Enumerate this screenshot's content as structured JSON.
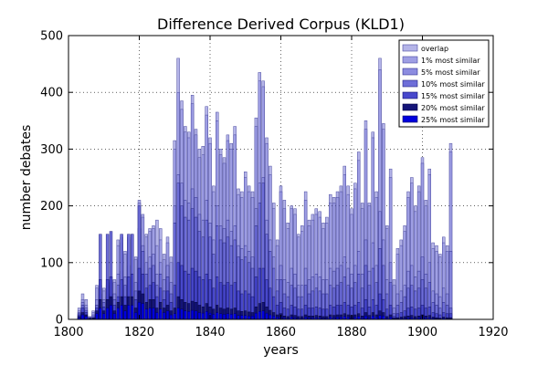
{
  "chart_data": {
    "type": "bar",
    "title": "Difference Derived Corpus (KLD1)",
    "xlabel": "years",
    "ylabel": "number debates",
    "xlim": [
      1800,
      1920
    ],
    "ylim": [
      0,
      500
    ],
    "xticks": [
      "1800",
      "1820",
      "1840",
      "1860",
      "1880",
      "1900",
      "1920"
    ],
    "yticks": [
      "0",
      "100",
      "200",
      "300",
      "400",
      "500"
    ],
    "grid": true,
    "legend_position": "top-right",
    "x": [
      1803,
      1804,
      1805,
      1806,
      1807,
      1808,
      1809,
      1810,
      1811,
      1812,
      1813,
      1814,
      1815,
      1816,
      1817,
      1818,
      1819,
      1820,
      1821,
      1822,
      1823,
      1824,
      1825,
      1826,
      1827,
      1828,
      1829,
      1830,
      1831,
      1832,
      1833,
      1834,
      1835,
      1836,
      1837,
      1838,
      1839,
      1840,
      1841,
      1842,
      1843,
      1844,
      1845,
      1846,
      1847,
      1848,
      1849,
      1850,
      1851,
      1852,
      1853,
      1854,
      1855,
      1856,
      1857,
      1858,
      1859,
      1860,
      1861,
      1862,
      1863,
      1864,
      1865,
      1866,
      1867,
      1868,
      1869,
      1870,
      1871,
      1872,
      1873,
      1874,
      1875,
      1876,
      1877,
      1878,
      1879,
      1880,
      1881,
      1882,
      1883,
      1884,
      1885,
      1886,
      1887,
      1888,
      1889,
      1890,
      1891,
      1892,
      1893,
      1894,
      1895,
      1896,
      1897,
      1898,
      1899,
      1900,
      1901,
      1902,
      1903,
      1904,
      1905,
      1906,
      1907,
      1908
    ],
    "series": [
      {
        "name": "overlap",
        "color": "#b4b4e8",
        "edge": "#4a4aa0",
        "values": [
          20,
          45,
          35,
          5,
          15,
          60,
          60,
          55,
          60,
          70,
          70,
          140,
          145,
          120,
          145,
          150,
          110,
          210,
          185,
          150,
          160,
          165,
          175,
          160,
          115,
          145,
          110,
          315,
          460,
          385,
          340,
          330,
          395,
          335,
          300,
          305,
          375,
          320,
          235,
          365,
          300,
          285,
          325,
          310,
          340,
          230,
          225,
          260,
          235,
          225,
          355,
          435,
          420,
          320,
          270,
          205,
          140,
          235,
          210,
          170,
          200,
          195,
          150,
          165,
          225,
          175,
          185,
          195,
          190,
          170,
          180,
          220,
          215,
          225,
          235,
          270,
          235,
          195,
          240,
          295,
          205,
          350,
          205,
          330,
          225,
          460,
          345,
          165,
          265,
          70,
          125,
          140,
          165,
          225,
          250,
          200,
          235,
          285,
          210,
          265,
          135,
          130,
          115,
          145,
          130,
          310
        ]
      },
      {
        "name": "1% most similar",
        "color": "#9e9ee4",
        "edge": "#4a4aa0",
        "values": [
          15,
          35,
          25,
          4,
          12,
          55,
          55,
          50,
          55,
          65,
          65,
          130,
          135,
          115,
          140,
          145,
          105,
          205,
          180,
          145,
          155,
          160,
          130,
          140,
          105,
          135,
          100,
          300,
          400,
          370,
          330,
          320,
          380,
          325,
          285,
          290,
          360,
          310,
          225,
          350,
          290,
          275,
          315,
          300,
          325,
          220,
          215,
          250,
          225,
          215,
          340,
          420,
          410,
          310,
          255,
          195,
          130,
          225,
          195,
          160,
          195,
          185,
          145,
          155,
          210,
          165,
          175,
          185,
          180,
          160,
          170,
          205,
          205,
          215,
          225,
          255,
          220,
          185,
          230,
          280,
          195,
          335,
          200,
          320,
          215,
          440,
          335,
          160,
          250,
          60,
          115,
          130,
          155,
          215,
          240,
          190,
          225,
          275,
          200,
          255,
          125,
          120,
          110,
          135,
          120,
          295
        ]
      },
      {
        "name": "5% most similar",
        "color": "#8c8ce0",
        "edge": "#333390",
        "values": [
          12,
          30,
          20,
          3,
          8,
          35,
          45,
          35,
          40,
          45,
          45,
          80,
          85,
          75,
          95,
          100,
          65,
          160,
          130,
          100,
          110,
          115,
          80,
          100,
          70,
          95,
          65,
          200,
          255,
          240,
          210,
          205,
          230,
          215,
          185,
          175,
          210,
          170,
          140,
          200,
          165,
          160,
          175,
          155,
          165,
          130,
          125,
          130,
          120,
          110,
          195,
          240,
          250,
          175,
          140,
          110,
          70,
          95,
          70,
          65,
          90,
          80,
          60,
          60,
          90,
          70,
          75,
          80,
          75,
          70,
          70,
          90,
          85,
          90,
          95,
          110,
          90,
          80,
          95,
          120,
          80,
          140,
          85,
          135,
          95,
          190,
          140,
          70,
          100,
          20,
          45,
          50,
          60,
          85,
          95,
          75,
          85,
          110,
          80,
          100,
          50,
          45,
          40,
          55,
          45,
          120
        ]
      },
      {
        "name": "10% most similar",
        "color": "#6e6ed8",
        "edge": "#222280",
        "values": [
          10,
          25,
          16,
          2,
          5,
          25,
          150,
          30,
          150,
          155,
          35,
          60,
          150,
          60,
          150,
          150,
          50,
          200,
          120,
          80,
          90,
          95,
          60,
          80,
          50,
          75,
          45,
          170,
          240,
          200,
          180,
          175,
          195,
          180,
          155,
          145,
          175,
          145,
          115,
          165,
          140,
          135,
          145,
          130,
          140,
          110,
          105,
          110,
          100,
          90,
          165,
          205,
          240,
          150,
          120,
          90,
          50,
          70,
          45,
          40,
          60,
          55,
          40,
          40,
          60,
          45,
          50,
          55,
          50,
          45,
          45,
          60,
          55,
          60,
          65,
          75,
          60,
          55,
          65,
          80,
          55,
          95,
          60,
          90,
          65,
          125,
          95,
          45,
          65,
          10,
          25,
          30,
          40,
          55,
          60,
          50,
          55,
          70,
          55,
          65,
          30,
          25,
          20,
          30,
          25,
          20
        ]
      },
      {
        "name": "15% most similar",
        "color": "#4848cc",
        "edge": "#111170",
        "values": [
          8,
          20,
          12,
          2,
          3,
          20,
          70,
          22,
          70,
          75,
          25,
          40,
          70,
          40,
          75,
          80,
          35,
          90,
          80,
          55,
          60,
          65,
          40,
          55,
          35,
          50,
          30,
          60,
          100,
          95,
          85,
          80,
          90,
          85,
          75,
          70,
          80,
          70,
          55,
          75,
          65,
          60,
          65,
          60,
          65,
          50,
          45,
          50,
          45,
          40,
          75,
          90,
          90,
          70,
          55,
          40,
          25,
          30,
          20,
          18,
          25,
          22,
          18,
          18,
          25,
          20,
          20,
          22,
          20,
          18,
          18,
          25,
          22,
          25,
          25,
          30,
          25,
          22,
          25,
          30,
          20,
          35,
          22,
          35,
          25,
          45,
          35,
          18,
          25,
          5,
          10,
          12,
          15,
          20,
          22,
          18,
          20,
          25,
          20,
          22,
          12,
          10,
          8,
          12,
          10,
          10
        ]
      },
      {
        "name": "20% most similar",
        "color": "#141478",
        "edge": "#000040",
        "values": [
          5,
          12,
          8,
          1,
          2,
          15,
          35,
          15,
          35,
          40,
          15,
          30,
          40,
          25,
          40,
          40,
          20,
          50,
          45,
          30,
          35,
          35,
          20,
          30,
          20,
          25,
          15,
          20,
          40,
          35,
          30,
          28,
          32,
          30,
          25,
          22,
          28,
          22,
          18,
          25,
          20,
          18,
          20,
          18,
          20,
          15,
          14,
          15,
          13,
          12,
          22,
          28,
          30,
          22,
          16,
          12,
          8,
          10,
          6,
          5,
          8,
          7,
          5,
          5,
          8,
          6,
          6,
          7,
          6,
          5,
          5,
          8,
          7,
          8,
          8,
          10,
          8,
          7,
          8,
          10,
          6,
          12,
          7,
          12,
          8,
          15,
          12,
          5,
          8,
          2,
          3,
          4,
          5,
          6,
          7,
          5,
          6,
          8,
          6,
          7,
          4,
          3,
          2,
          4,
          3,
          3
        ]
      },
      {
        "name": "25% most similar",
        "color": "#0000dd",
        "edge": "#000060",
        "values": [
          3,
          8,
          5,
          1,
          1,
          10,
          20,
          10,
          20,
          25,
          10,
          20,
          25,
          15,
          25,
          25,
          12,
          30,
          28,
          18,
          20,
          20,
          12,
          18,
          12,
          15,
          8,
          10,
          20,
          18,
          15,
          14,
          16,
          15,
          12,
          11,
          14,
          11,
          9,
          12,
          10,
          9,
          10,
          9,
          10,
          7,
          7,
          7,
          6,
          6,
          11,
          14,
          15,
          11,
          8,
          6,
          4,
          5,
          3,
          2,
          4,
          3,
          2,
          2,
          4,
          3,
          3,
          3,
          3,
          2,
          2,
          4,
          3,
          4,
          4,
          5,
          4,
          3,
          4,
          5,
          3,
          6,
          3,
          6,
          4,
          7,
          6,
          2,
          4,
          1,
          1,
          2,
          2,
          3,
          3,
          2,
          3,
          4,
          3,
          3,
          2,
          1,
          1,
          2,
          1,
          1
        ]
      }
    ]
  }
}
